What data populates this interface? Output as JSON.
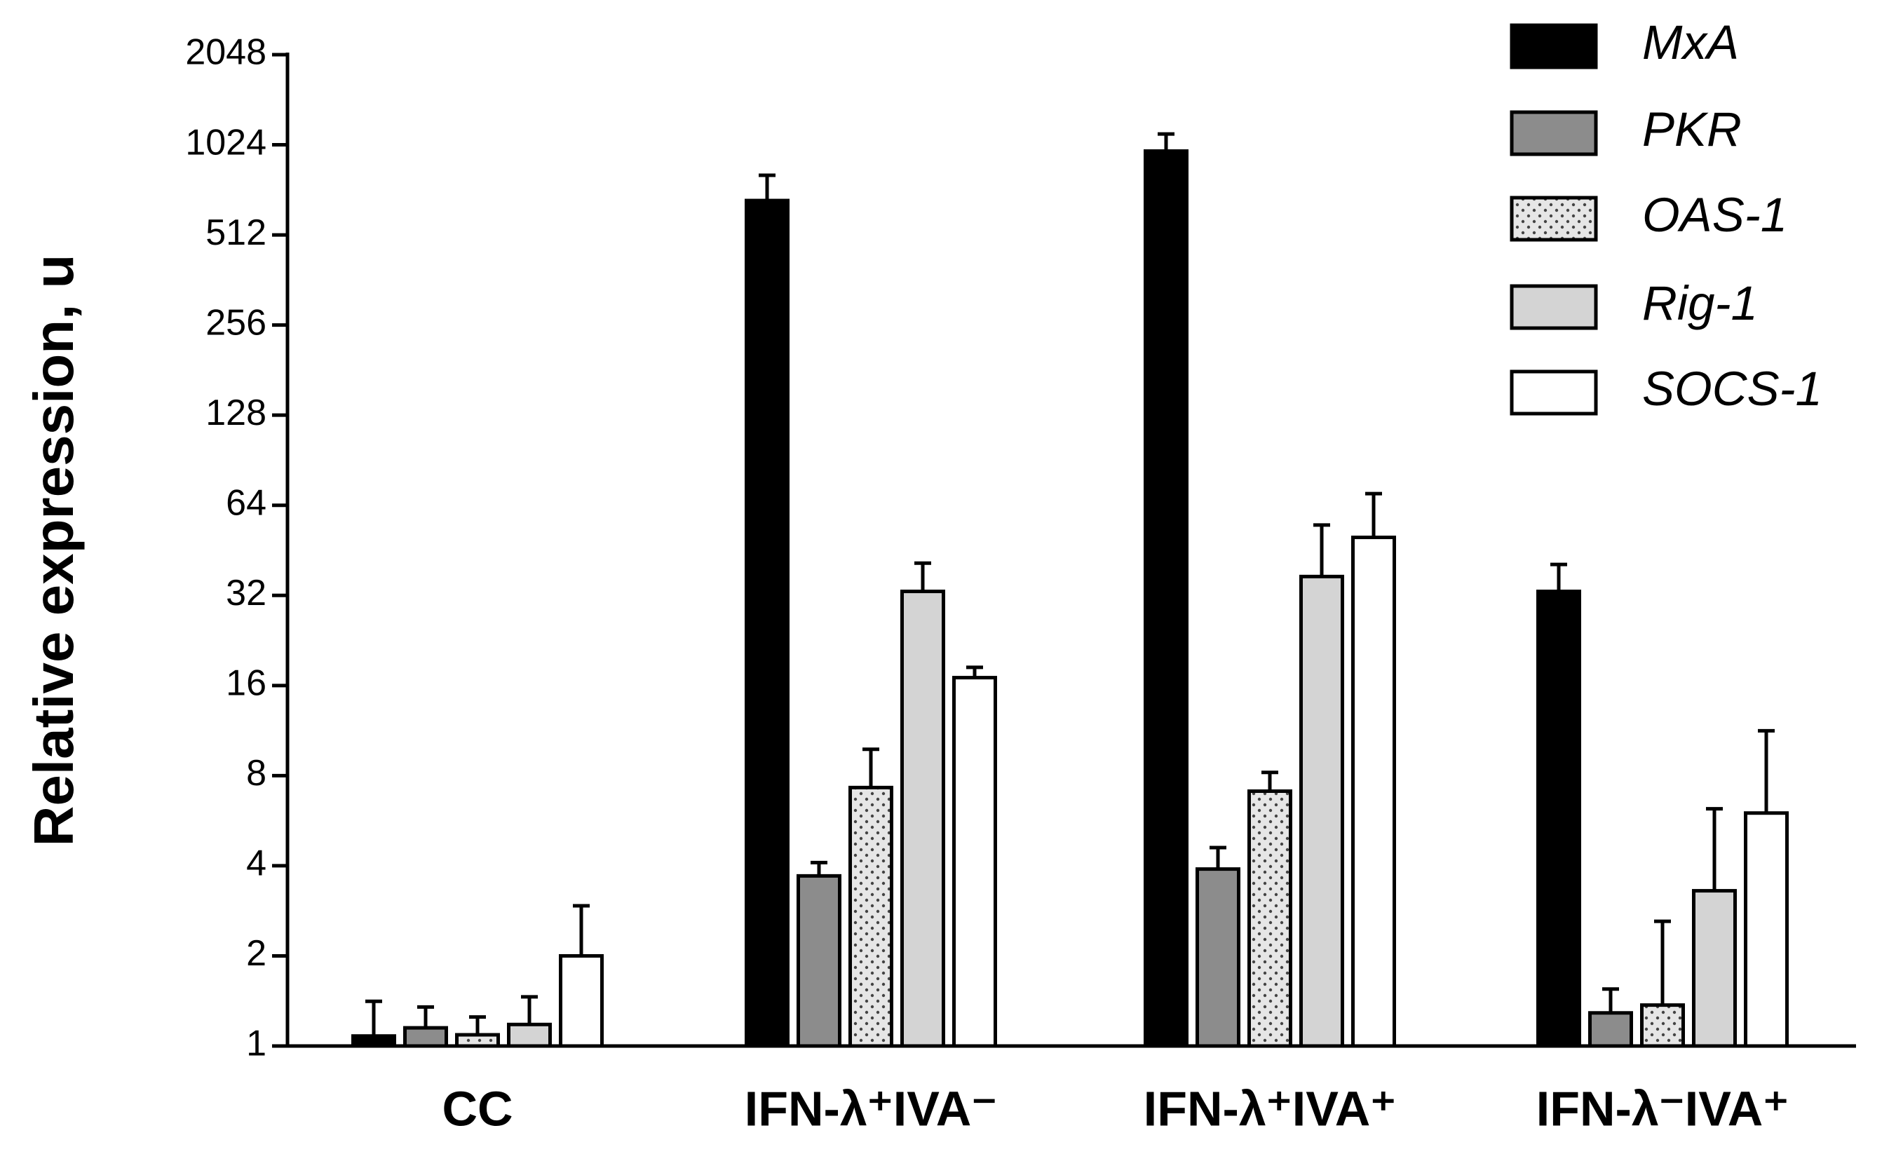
{
  "chart_data": {
    "type": "bar",
    "y_label": "Relative expression, u",
    "categories": [
      "CC",
      "IFN-λ⁺IVA⁻",
      "IFN-λ⁺IVA⁺",
      "IFN-λ⁻IVA⁺"
    ],
    "series": [
      {
        "name": "MxA",
        "color": "#000000",
        "values": [
          1.08,
          667,
          976,
          33
        ],
        "errors": [
          0.33,
          143,
          137,
          7.6
        ]
      },
      {
        "name": "PKR",
        "color": "#8c8c8c",
        "values": [
          1.15,
          3.7,
          3.9,
          1.29
        ],
        "errors": [
          0.2,
          0.4,
          0.7,
          0.26
        ]
      },
      {
        "name": "OAS-1",
        "color": "#e6e6e6",
        "pattern": "dots",
        "values": [
          1.09,
          7.3,
          7.1,
          1.37
        ],
        "errors": [
          0.16,
          2.5,
          1.1,
          1.24
        ]
      },
      {
        "name": "Rig-1",
        "color": "#d4d4d4",
        "values": [
          1.18,
          33,
          37,
          3.3
        ],
        "errors": [
          0.28,
          8,
          18,
          2.9
        ]
      },
      {
        "name": "SOCS-1",
        "color": "#ffffff",
        "values": [
          2.0,
          17,
          50,
          6.0
        ],
        "errors": [
          0.94,
          1.4,
          20,
          5.3
        ]
      }
    ],
    "log_scale": true,
    "log_base": 2,
    "ylim": [
      1,
      2048
    ],
    "yticks": [
      1,
      2,
      4,
      8,
      16,
      32,
      64,
      128,
      256,
      512,
      1024,
      2048
    ],
    "legend": "top-right"
  }
}
